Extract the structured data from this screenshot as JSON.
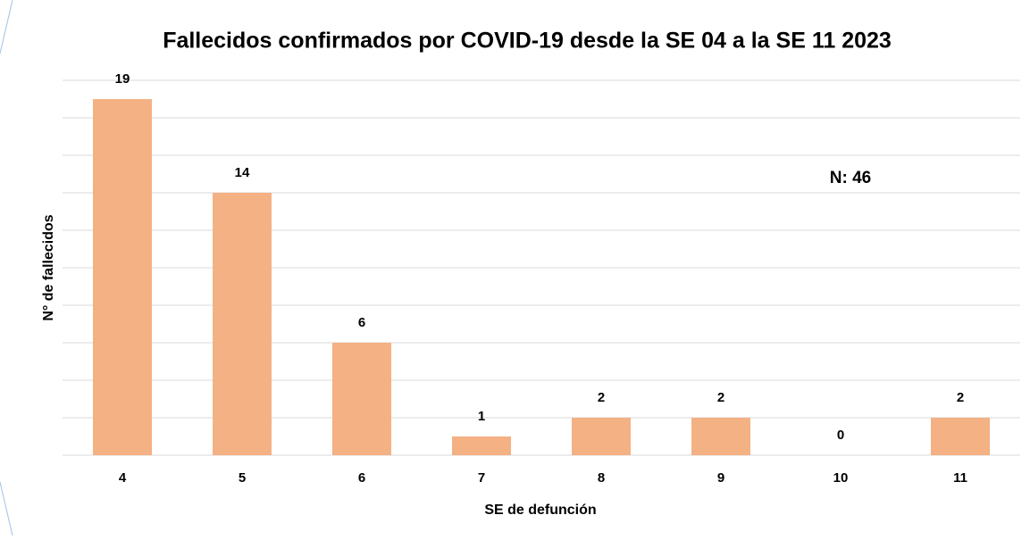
{
  "chart_data": {
    "type": "bar",
    "title": "Fallecidos confirmados por COVID-19 desde la SE 04 a la SE 11 2023",
    "x_label": "SE de defunción",
    "y_label": "N° de fallecidos",
    "annotation": "N: 46",
    "categories": [
      "4",
      "5",
      "6",
      "7",
      "8",
      "9",
      "10",
      "11"
    ],
    "values": [
      19,
      14,
      6,
      1,
      2,
      2,
      0,
      2
    ],
    "color": "#f4b183",
    "ylim": [
      0,
      20
    ],
    "yticks": [
      0,
      2,
      4,
      6,
      8,
      10,
      12,
      14,
      16,
      18,
      20
    ],
    "grid": true
  }
}
